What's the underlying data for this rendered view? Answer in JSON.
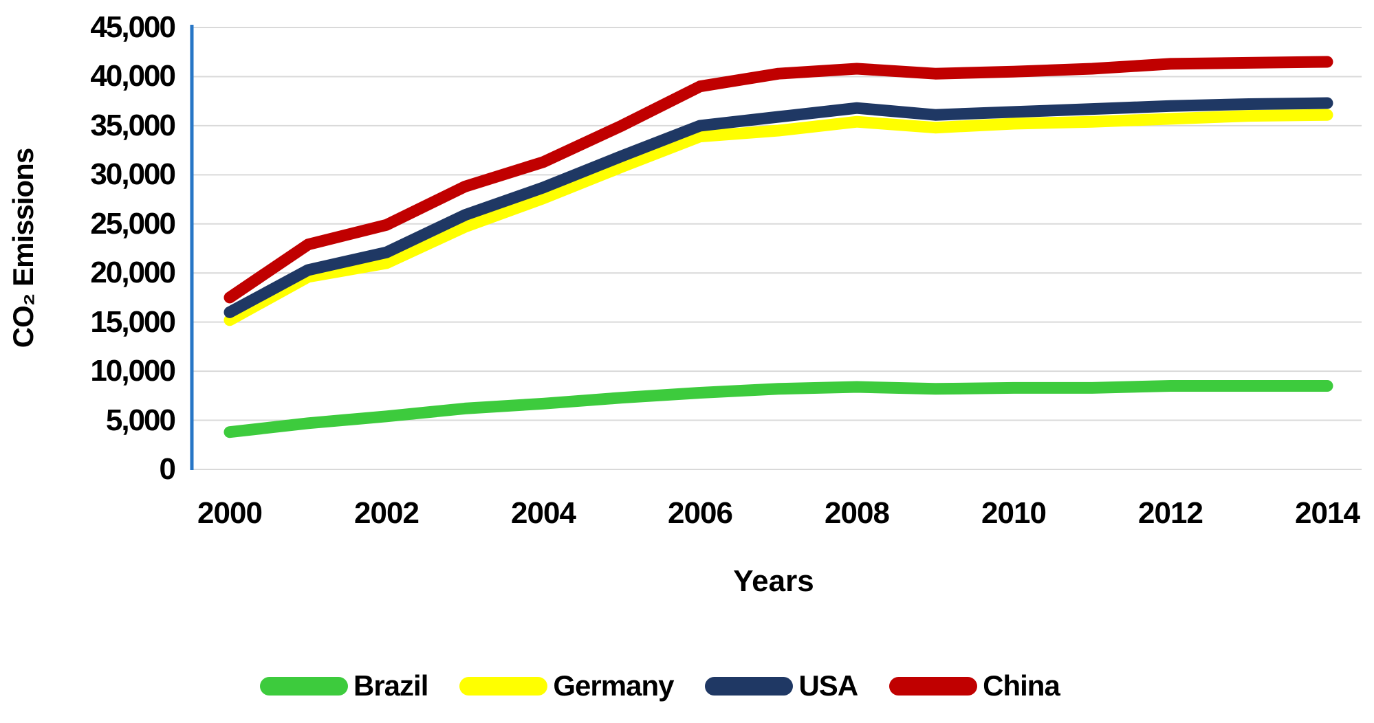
{
  "chart_data": {
    "type": "line",
    "title": "",
    "xlabel": "Years",
    "ylabel": "CO₂ Emissions",
    "x": [
      2000,
      2001,
      2002,
      2003,
      2004,
      2005,
      2006,
      2007,
      2008,
      2009,
      2010,
      2011,
      2012,
      2013,
      2014
    ],
    "x_tick_labels": [
      "2000",
      "2002",
      "2004",
      "2006",
      "2008",
      "2010",
      "2012",
      "2014"
    ],
    "y_ticks": [
      0,
      5000,
      10000,
      15000,
      20000,
      25000,
      30000,
      35000,
      40000,
      45000
    ],
    "y_tick_labels": [
      "0",
      "5,000",
      "10,000",
      "15,000",
      "20,000",
      "25,000",
      "30,000",
      "35,000",
      "40,000",
      "45,000"
    ],
    "ylim": [
      0,
      45000
    ],
    "grid": "horizontal",
    "legend_position": "bottom",
    "axis_line_color": "#2776C6",
    "gridline_color": "#D9D9D9",
    "series": [
      {
        "name": "Brazil",
        "color": "#3DCB3D",
        "values": [
          3800,
          4700,
          5400,
          6200,
          6700,
          7300,
          7800,
          8200,
          8400,
          8200,
          8300,
          8300,
          8500,
          8500,
          8500
        ]
      },
      {
        "name": "Germany",
        "color": "#FFFF00",
        "values": [
          15200,
          19600,
          21000,
          24700,
          27600,
          30800,
          33900,
          34500,
          35400,
          34800,
          35200,
          35400,
          35700,
          36000,
          36100
        ]
      },
      {
        "name": "USA",
        "color": "#1F3864",
        "values": [
          16000,
          20300,
          22100,
          25900,
          28700,
          31900,
          35000,
          35900,
          36800,
          36100,
          36400,
          36700,
          37000,
          37200,
          37300
        ]
      },
      {
        "name": "China",
        "color": "#C00000",
        "values": [
          17500,
          22900,
          24900,
          28800,
          31300,
          35000,
          39000,
          40300,
          40800,
          40300,
          40500,
          40800,
          41300,
          41400,
          41500
        ]
      }
    ]
  }
}
